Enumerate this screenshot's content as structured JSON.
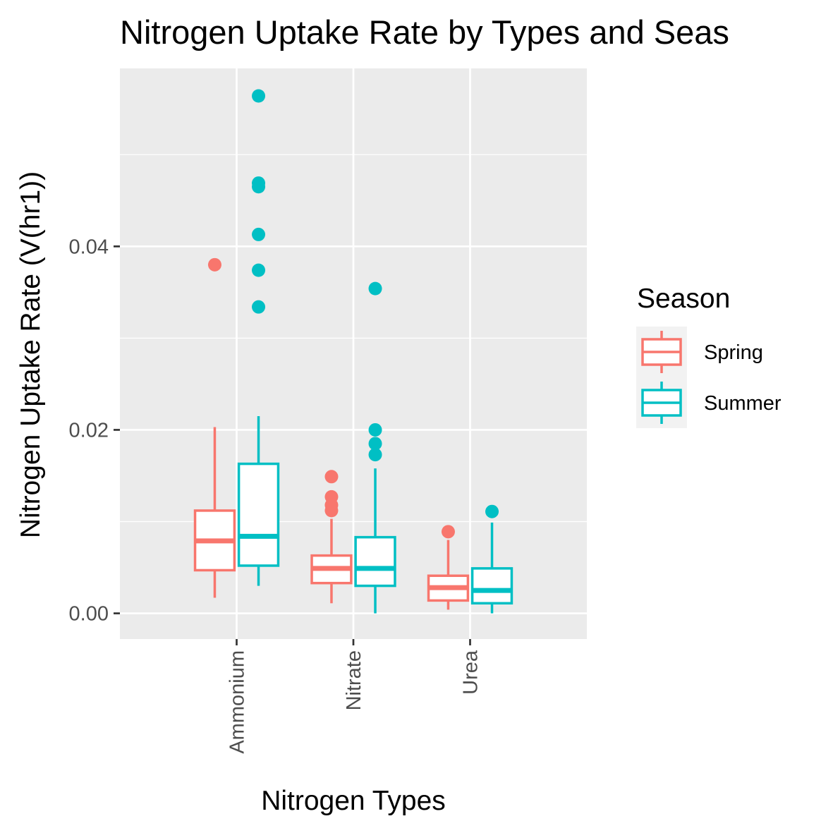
{
  "chart_data": {
    "type": "boxplot",
    "title": "Nitrogen Uptake Rate by Types and Seas",
    "xlabel": "Nitrogen Types",
    "ylabel": "Nitrogen Uptake Rate (V(hr1))",
    "categories": [
      "Ammonium",
      "Nitrate",
      "Urea"
    ],
    "y_ticks": [
      0.0,
      0.02,
      0.04
    ],
    "y_tick_labels": [
      "0.00",
      "0.02",
      "0.04"
    ],
    "ylim": [
      -0.0028,
      0.0594
    ],
    "grid": true,
    "panel_background": "#ebebeb",
    "legend": {
      "title": "Season",
      "position": "right"
    },
    "series": [
      {
        "name": "Spring",
        "color": "#F8766D",
        "boxes": [
          {
            "category": "Ammonium",
            "whisker_low": 0.0017,
            "q1": 0.0047,
            "median": 0.0079,
            "q3": 0.0112,
            "whisker_high": 0.0203,
            "outliers": [
              0.038
            ]
          },
          {
            "category": "Nitrate",
            "whisker_low": 0.0011,
            "q1": 0.0033,
            "median": 0.0049,
            "q3": 0.0063,
            "whisker_high": 0.0103,
            "outliers": [
              0.0149,
              0.0127,
              0.0118,
              0.0112
            ]
          },
          {
            "category": "Urea",
            "whisker_low": 0.0004,
            "q1": 0.0014,
            "median": 0.0028,
            "q3": 0.0041,
            "whisker_high": 0.008,
            "outliers": [
              0.0089
            ]
          }
        ]
      },
      {
        "name": "Summer",
        "color": "#00BFC4",
        "boxes": [
          {
            "category": "Ammonium",
            "whisker_low": 0.003,
            "q1": 0.0052,
            "median": 0.0084,
            "q3": 0.0163,
            "whisker_high": 0.0215,
            "outliers": [
              0.0564,
              0.0469,
              0.0465,
              0.0413,
              0.0374,
              0.0334
            ]
          },
          {
            "category": "Nitrate",
            "whisker_low": 0.0,
            "q1": 0.003,
            "median": 0.0049,
            "q3": 0.0083,
            "whisker_high": 0.0158,
            "outliers": [
              0.0354,
              0.02,
              0.0185,
              0.0173
            ]
          },
          {
            "category": "Urea",
            "whisker_low": 0.0,
            "q1": 0.0011,
            "median": 0.0025,
            "q3": 0.0049,
            "whisker_high": 0.0099,
            "outliers": [
              0.0111
            ]
          }
        ]
      }
    ]
  }
}
